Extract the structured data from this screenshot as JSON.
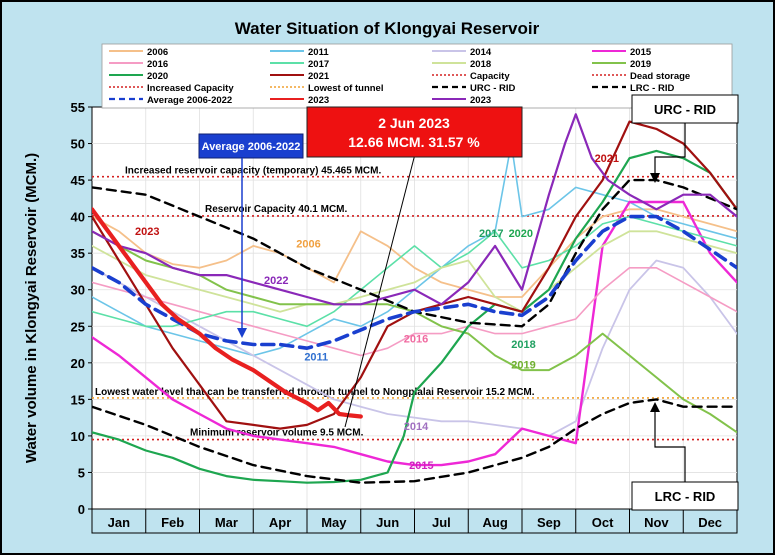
{
  "chart_data": {
    "type": "line",
    "title": "Water Situation of Klongyai Reservoir",
    "ylabel": "Water volume in Klongyai Reservoir (MCM.)",
    "xlabel": "",
    "ylim": [
      0,
      55
    ],
    "yticks": [
      0,
      5,
      10,
      15,
      20,
      25,
      30,
      35,
      40,
      45,
      50,
      55
    ],
    "months": [
      "Jan",
      "Feb",
      "Mar",
      "Apr",
      "May",
      "Jun",
      "Jul",
      "Aug",
      "Sep",
      "Oct",
      "Nov",
      "Dec"
    ],
    "grid": true,
    "legend_position": "top",
    "legend": [
      {
        "label": "2006",
        "color": "#f5c08a",
        "style": "solid"
      },
      {
        "label": "2011",
        "color": "#6cc5e8",
        "style": "solid"
      },
      {
        "label": "2014",
        "color": "#c9c4e8",
        "style": "solid"
      },
      {
        "label": "2015",
        "color": "#ee28d6",
        "style": "solid"
      },
      {
        "label": "2016",
        "color": "#f59cc4",
        "style": "solid"
      },
      {
        "label": "2017",
        "color": "#5ce0a8",
        "style": "solid"
      },
      {
        "label": "2018",
        "color": "#cfe39a",
        "style": "solid"
      },
      {
        "label": "2019",
        "color": "#82c24b",
        "style": "solid"
      },
      {
        "label": "2020",
        "color": "#1ea650",
        "style": "solid"
      },
      {
        "label": "2021",
        "color": "#a01010",
        "style": "solid"
      },
      {
        "label": "Capacity",
        "color": "#d42020",
        "style": "dotted"
      },
      {
        "label": "Dead storage",
        "color": "#d42020",
        "style": "dotted"
      },
      {
        "label": "Increased Capacity",
        "color": "#d42020",
        "style": "dotted"
      },
      {
        "label": "Lowest of tunnel",
        "color": "#f0a030",
        "style": "dotted"
      },
      {
        "label": "URC - RID",
        "color": "#000000",
        "style": "dashed"
      },
      {
        "label": "LRC - RID",
        "color": "#000000",
        "style": "dashed"
      },
      {
        "label": "Average 2006-2022",
        "color": "#1a3fcf",
        "style": "dashed"
      },
      {
        "label": "2023",
        "color": "#e82020",
        "style": "solid"
      },
      {
        "label": "2023",
        "color": "#8a28b8",
        "style": "solid"
      }
    ],
    "reference_lines": [
      {
        "name": "Increased Capacity",
        "value": 45.465,
        "color": "#d42020",
        "label": "Increased reservoir capacity (temporary) 45.465 MCM."
      },
      {
        "name": "Capacity",
        "value": 40.1,
        "color": "#d42020",
        "label": "Reservoir Capacity 40.1 MCM."
      },
      {
        "name": "Lowest of tunnel",
        "value": 15.2,
        "color": "#f0a030",
        "label": "Lowest water level that can be transferred through tunnel to Nongplalai Reservoir 15.2 MCM."
      },
      {
        "name": "Dead storage",
        "value": 9.5,
        "color": "#d42020",
        "label": "Minimum reservoir volume 9.5 MCM."
      }
    ],
    "series": [
      {
        "name": "2006",
        "color": "#f5c08a",
        "width": 1.8,
        "dash": "",
        "x": [
          0,
          0.5,
          1,
          1.5,
          2,
          2.5,
          3,
          3.5,
          4,
          4.5,
          5,
          5.5,
          6,
          6.5,
          7,
          7.5,
          8,
          8.5,
          9,
          9.5,
          10,
          10.5,
          11,
          11.5,
          12
        ],
        "y": [
          40,
          38,
          35,
          33.5,
          33,
          34,
          36,
          35,
          33,
          31,
          38,
          36,
          33,
          31,
          30,
          29,
          29,
          33,
          37,
          40,
          41,
          41,
          40,
          39,
          38
        ]
      },
      {
        "name": "2011",
        "color": "#6cc5e8",
        "width": 1.6,
        "dash": "",
        "x": [
          0,
          0.5,
          1,
          1.5,
          2,
          2.5,
          3,
          3.5,
          4,
          4.5,
          5,
          5.5,
          6,
          6.5,
          7,
          7.5,
          7.8,
          8,
          8.5,
          9,
          9.5,
          10,
          10.5,
          11,
          11.5,
          12
        ],
        "y": [
          29,
          27,
          25,
          24,
          23,
          22,
          21,
          22,
          24,
          26,
          25,
          27,
          30,
          33,
          36,
          38,
          50,
          40,
          41,
          44,
          43,
          42,
          40,
          39,
          38,
          37
        ]
      },
      {
        "name": "2014",
        "color": "#c9c4e8",
        "width": 1.8,
        "dash": "",
        "x": [
          0,
          0.5,
          1,
          1.5,
          2,
          2.5,
          3,
          3.5,
          4,
          4.5,
          5,
          5.5,
          6,
          6.5,
          7,
          7.5,
          8,
          8.5,
          9,
          9.5,
          10,
          10.5,
          11,
          11.5,
          12
        ],
        "y": [
          33,
          31,
          29,
          27,
          25,
          23,
          21,
          19,
          17,
          15,
          14,
          13,
          12.5,
          12,
          12,
          11.5,
          11,
          10,
          12,
          22,
          30,
          34,
          33,
          29,
          24
        ]
      },
      {
        "name": "2015",
        "color": "#ee28d6",
        "width": 2.4,
        "dash": "",
        "x": [
          0,
          0.5,
          1,
          1.5,
          2,
          2.5,
          3,
          3.5,
          4,
          4.5,
          5,
          5.5,
          6,
          6.5,
          7,
          7.5,
          8,
          8.5,
          9,
          9.5,
          10,
          10.5,
          11,
          11.5,
          12
        ],
        "y": [
          23.5,
          21,
          18,
          15,
          13,
          11,
          10,
          9.5,
          9,
          8.5,
          7.5,
          6.5,
          6,
          6,
          6.5,
          7.5,
          11,
          10,
          9,
          36,
          42,
          42,
          42,
          35,
          31
        ]
      },
      {
        "name": "2016",
        "color": "#f59cc4",
        "width": 1.6,
        "dash": "",
        "x": [
          0,
          0.5,
          1,
          1.5,
          2,
          2.5,
          3,
          3.5,
          4,
          4.5,
          5,
          5.5,
          6,
          6.5,
          7,
          7.5,
          8,
          8.5,
          9,
          9.5,
          10,
          10.5,
          11,
          11.5,
          12
        ],
        "y": [
          31,
          30,
          29,
          28,
          27,
          26,
          25,
          24,
          23,
          22,
          21,
          22,
          24,
          24,
          25,
          24,
          24,
          25,
          26,
          30,
          33,
          33,
          31,
          29,
          27
        ]
      },
      {
        "name": "2017",
        "color": "#5ce0a8",
        "width": 1.6,
        "dash": "",
        "x": [
          0,
          0.5,
          1,
          1.5,
          2,
          2.5,
          3,
          3.5,
          4,
          4.5,
          5,
          5.5,
          6,
          6.5,
          7,
          7.5,
          8,
          8.5,
          9,
          9.5,
          10,
          10.5,
          11,
          11.5,
          12
        ],
        "y": [
          27,
          26,
          25,
          25,
          26,
          27,
          27,
          26,
          25,
          27,
          30,
          33,
          36,
          33,
          35,
          38,
          33,
          34,
          36,
          39,
          40,
          39,
          38,
          37,
          36
        ]
      },
      {
        "name": "2018",
        "color": "#cfe39a",
        "width": 1.8,
        "dash": "",
        "x": [
          0,
          0.5,
          1,
          1.5,
          2,
          2.5,
          3,
          3.5,
          4,
          4.5,
          5,
          5.5,
          6,
          6.5,
          7,
          7.5,
          8,
          8.5,
          9,
          9.5,
          10,
          10.5,
          11,
          11.5,
          12
        ],
        "y": [
          36,
          34,
          32,
          31,
          30,
          29,
          28,
          27,
          28,
          28,
          29,
          30,
          31,
          33,
          34,
          29,
          27,
          30,
          33,
          36,
          38,
          38,
          37,
          36,
          35
        ]
      },
      {
        "name": "2019",
        "color": "#82c24b",
        "width": 2,
        "dash": "",
        "x": [
          0,
          0.5,
          1,
          1.5,
          2,
          2.5,
          3,
          3.5,
          4,
          4.5,
          5,
          5.5,
          6,
          6.5,
          7,
          7.5,
          8,
          8.5,
          9,
          9.5,
          10,
          10.5,
          11,
          11.5,
          12
        ],
        "y": [
          38,
          36,
          34,
          33,
          32,
          30,
          29,
          28,
          28,
          28,
          28,
          28,
          27,
          25,
          24,
          21,
          19,
          19,
          21,
          24,
          21,
          18,
          15,
          13,
          10.5
        ]
      },
      {
        "name": "2020",
        "color": "#1ea650",
        "width": 2.2,
        "dash": "",
        "x": [
          0,
          0.5,
          1,
          1.5,
          2,
          2.5,
          3,
          3.5,
          4,
          4.5,
          5,
          5.5,
          5.8,
          6,
          6.5,
          7,
          7.5,
          8,
          8.5,
          9,
          9.5,
          10,
          10.5,
          11,
          11.5,
          12
        ],
        "y": [
          10.5,
          9.5,
          8,
          7,
          5.5,
          4.5,
          4,
          3.8,
          3.6,
          3.7,
          4,
          5,
          10,
          16,
          20,
          25,
          28,
          27,
          30,
          37,
          42,
          48,
          49,
          48,
          46,
          41
        ]
      },
      {
        "name": "2021",
        "color": "#a01010",
        "width": 2.2,
        "dash": "",
        "x": [
          0,
          0.5,
          1,
          1.5,
          2,
          2.5,
          3,
          3.5,
          4,
          4.5,
          5,
          5.5,
          6,
          6.5,
          7,
          7.5,
          8,
          8.5,
          9,
          9.5,
          10,
          10.5,
          11,
          11.5,
          12
        ],
        "y": [
          40,
          34,
          28,
          22,
          17,
          12,
          11.5,
          11,
          11.5,
          13,
          18,
          25,
          27,
          28,
          29,
          28,
          27,
          33,
          40,
          45,
          53,
          52,
          50,
          46,
          41
        ]
      },
      {
        "name": "URC - RID",
        "color": "#000000",
        "width": 2.4,
        "dash": "9,6",
        "x": [
          0,
          1,
          2,
          3,
          4,
          5,
          6,
          7,
          8,
          8.5,
          9,
          9.5,
          10,
          10.5,
          11,
          12
        ],
        "y": [
          44,
          43,
          40,
          37,
          33,
          30,
          27,
          25.5,
          25,
          28,
          35,
          41,
          45,
          45,
          44,
          41
        ]
      },
      {
        "name": "LRC - RID",
        "color": "#000000",
        "width": 2.4,
        "dash": "9,6",
        "x": [
          0,
          1,
          2,
          3,
          4,
          5,
          6,
          7,
          8,
          8.5,
          9,
          9.5,
          10,
          10.5,
          11,
          12
        ],
        "y": [
          14,
          11.5,
          8.5,
          6,
          4.5,
          3.6,
          3.8,
          5,
          7,
          8.5,
          11,
          13,
          14.5,
          15,
          14,
          14
        ]
      },
      {
        "name": "Average 2006-2022",
        "color": "#1a3fcf",
        "width": 3.6,
        "dash": "12,7",
        "x": [
          0,
          0.5,
          1,
          1.5,
          2,
          2.5,
          3,
          3.5,
          4,
          4.5,
          5,
          5.5,
          6,
          6.5,
          7,
          7.5,
          8,
          8.5,
          9,
          9.5,
          10,
          10.5,
          11,
          11.5,
          12
        ],
        "y": [
          33,
          31,
          28,
          26,
          24,
          23,
          22.5,
          22.5,
          22,
          23,
          24.5,
          26,
          27,
          27.5,
          28,
          27,
          26.5,
          29,
          34,
          38,
          40,
          40,
          38,
          35.5,
          33
        ]
      },
      {
        "name": "2023 (purple)",
        "color": "#8a28b8",
        "width": 2.2,
        "dash": "",
        "x": [
          0,
          0.5,
          1,
          1.5,
          2,
          2.5,
          3,
          3.5,
          4,
          4.5,
          5,
          5.5,
          6,
          6.5,
          7,
          7.5,
          8,
          8.5,
          8.8,
          9,
          9.3,
          9.6,
          10,
          10.5,
          11,
          11.5,
          12
        ],
        "y": [
          38,
          36,
          35,
          33,
          32,
          32,
          31,
          30,
          29,
          28,
          28,
          29,
          30,
          28,
          31,
          36,
          30,
          43,
          50,
          54,
          48,
          45,
          43,
          41,
          43,
          43,
          40
        ]
      },
      {
        "name": "2023",
        "color": "#e82020",
        "width": 4.2,
        "dash": "",
        "x": [
          0,
          0.3,
          0.6,
          1,
          1.3,
          1.6,
          2,
          2.3,
          2.6,
          3,
          3.3,
          3.6,
          4,
          4.2,
          4.4,
          4.6,
          4.8,
          5
        ],
        "y": [
          41,
          38,
          35,
          31,
          28,
          26,
          24,
          22,
          20.5,
          19,
          17.5,
          16,
          14.5,
          13.5,
          14.5,
          13,
          12.8,
          12.66
        ]
      }
    ],
    "annotations": [
      {
        "text": "2023",
        "color": "#c01010",
        "x": 0.8,
        "y": 37.5
      },
      {
        "text": "2022",
        "color": "#8a28b8",
        "x": 3.2,
        "y": 30.8
      },
      {
        "text": "2006",
        "color": "#f0a040",
        "x": 3.8,
        "y": 35.8
      },
      {
        "text": "2011",
        "color": "#3070d0",
        "x": 3.95,
        "y": 20.3
      },
      {
        "text": "2016",
        "color": "#f06aa0",
        "x": 5.8,
        "y": 22.8
      },
      {
        "text": "2014",
        "color": "#a070c0",
        "x": 5.8,
        "y": 10.8
      },
      {
        "text": "2015",
        "color": "#d020c0",
        "x": 5.9,
        "y": 5.5
      },
      {
        "text": "2017",
        "color": "#20a060",
        "x": 7.2,
        "y": 37.2
      },
      {
        "text": "2020",
        "color": "#1ea650",
        "x": 7.75,
        "y": 37.2
      },
      {
        "text": "2018",
        "color": "#20a060",
        "x": 7.8,
        "y": 22.0
      },
      {
        "text": "2019",
        "color": "#70b030",
        "x": 7.8,
        "y": 19.2
      },
      {
        "text": "2021",
        "color": "#c01010",
        "x": 9.35,
        "y": 47.5
      }
    ],
    "callouts": {
      "current": {
        "line1": "2 Jun 2023",
        "line2": "12.66 MCM. 31.57 %"
      },
      "average": "Average 2006-2022",
      "urc": "URC - RID",
      "lrc": "LRC - RID"
    }
  }
}
